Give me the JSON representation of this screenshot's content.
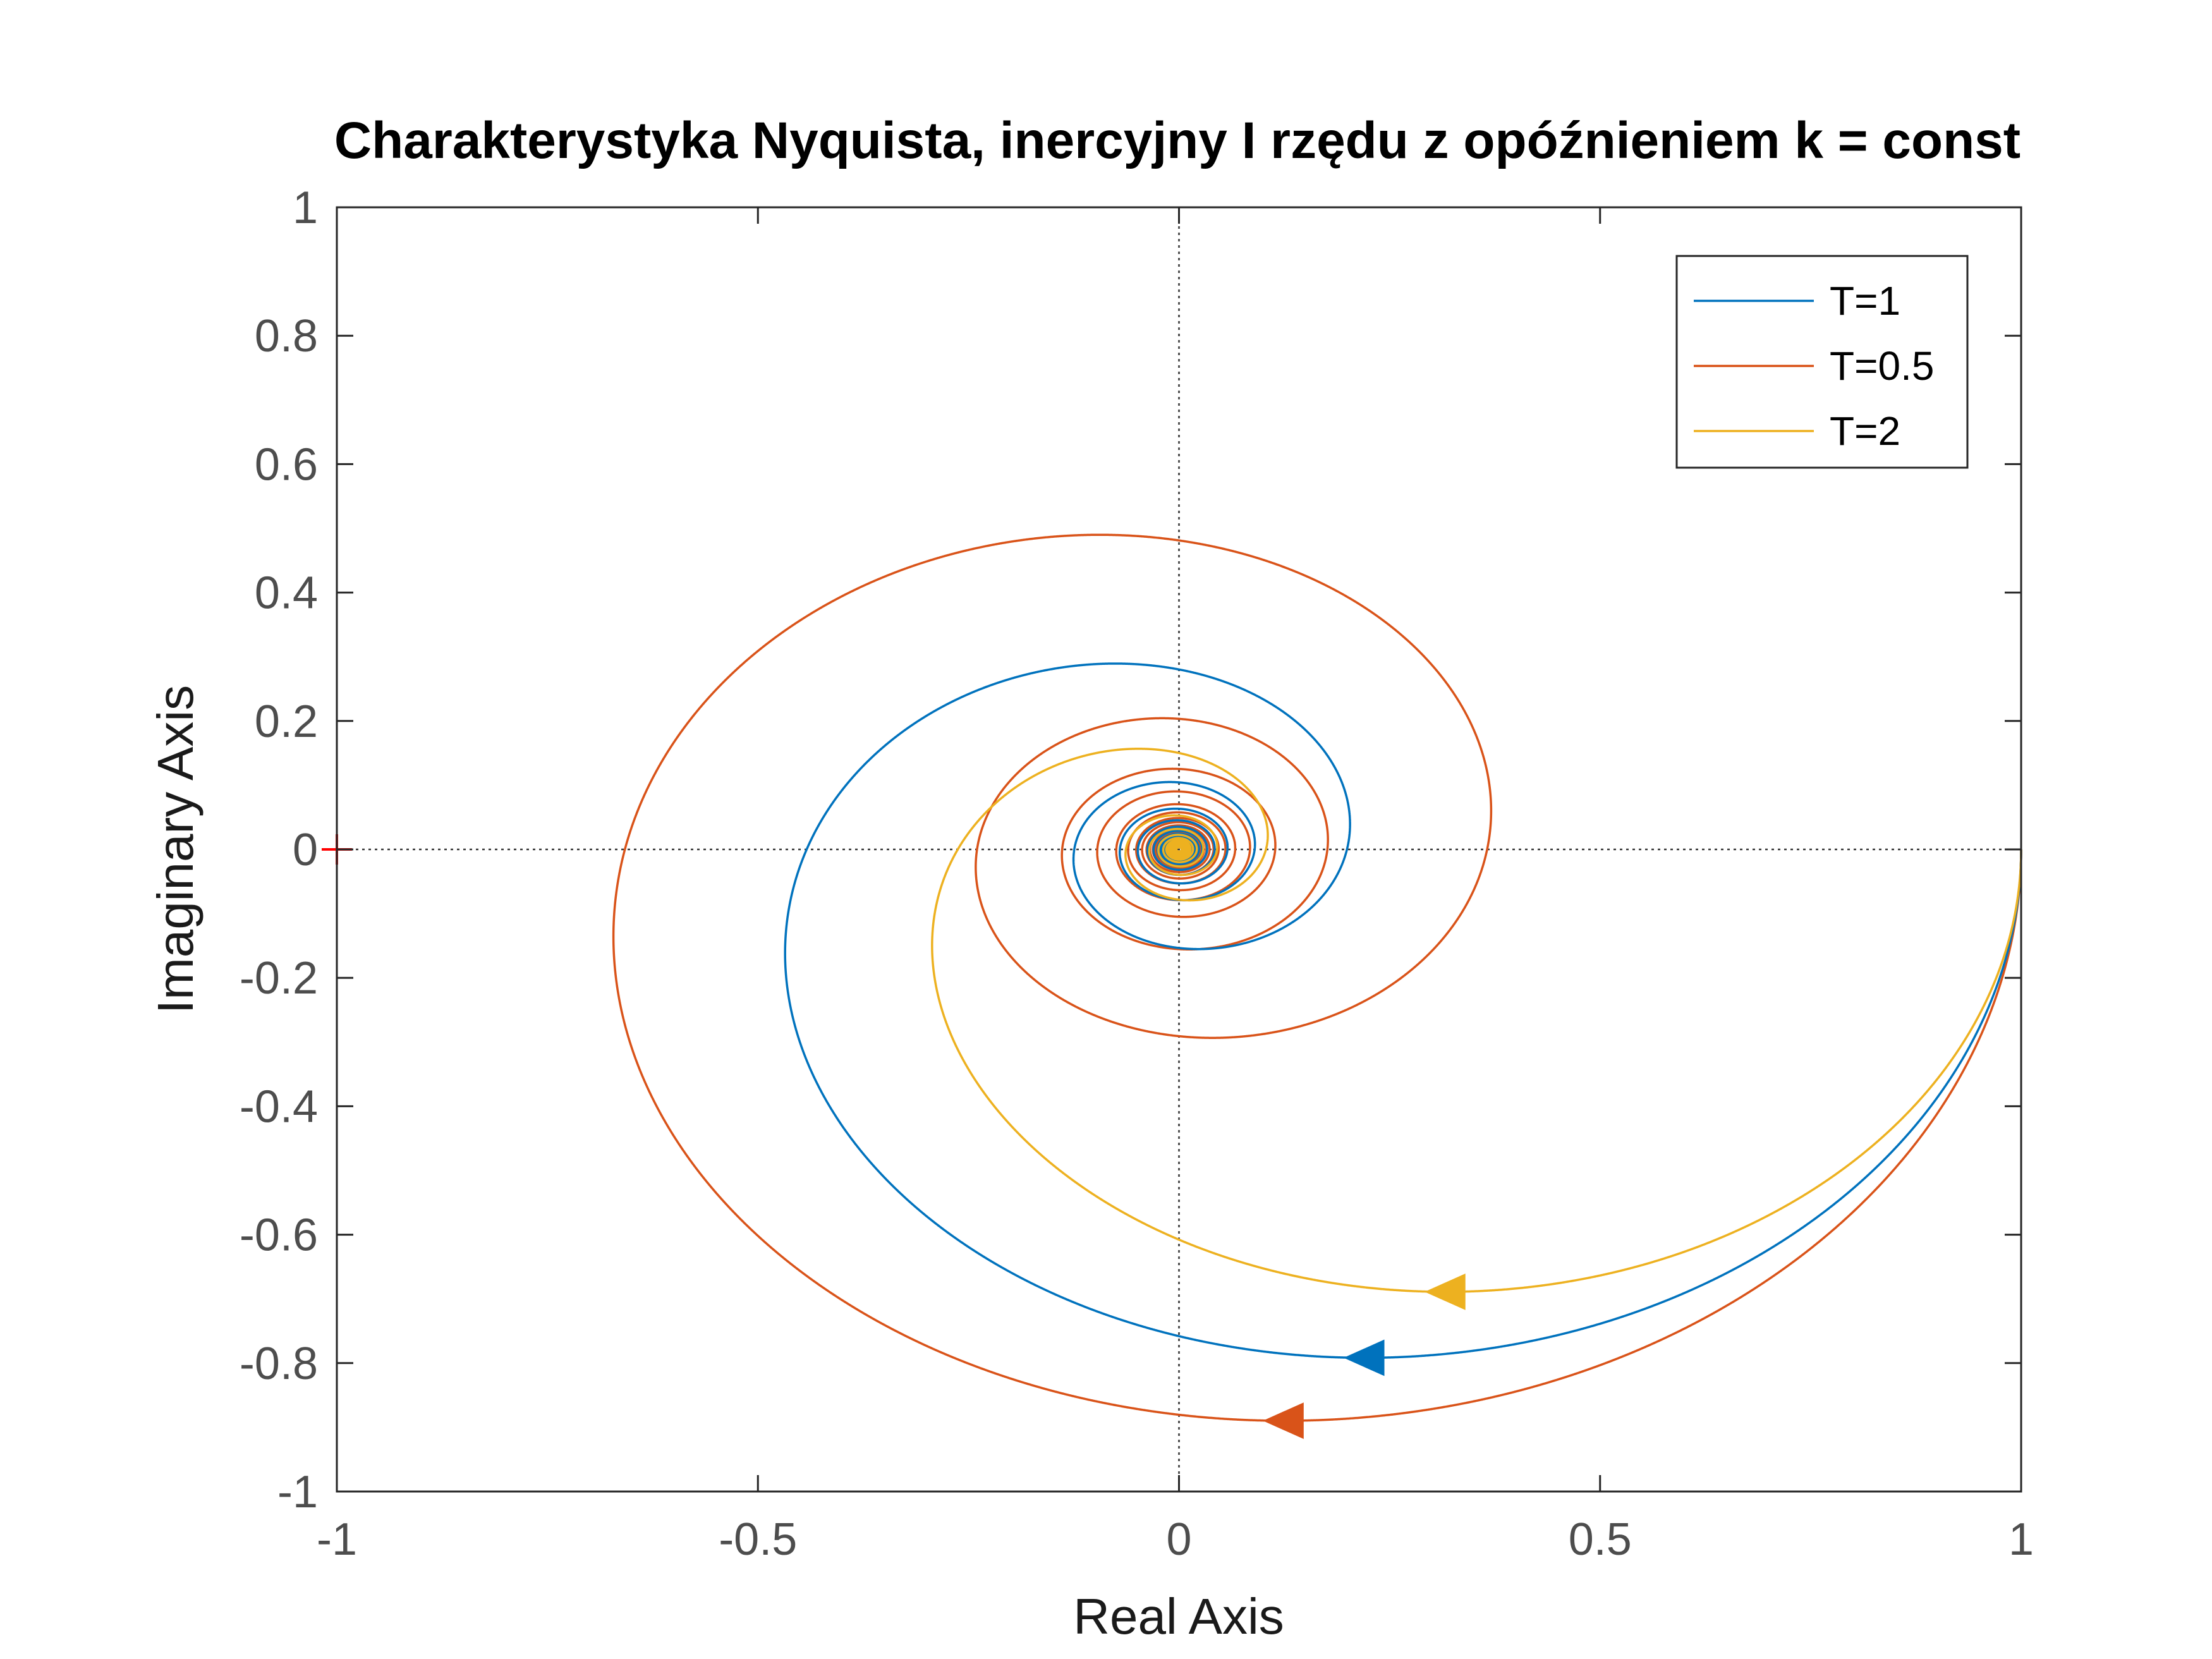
{
  "chart_data": {
    "type": "line",
    "title": "Charakterystyka Nyquista, inercyjny I rzędu z opóźnieniem k = const",
    "xlabel": "Real Axis",
    "ylabel": "Imaginary Axis",
    "xlim": [
      -1,
      1
    ],
    "ylim": [
      -1,
      1
    ],
    "xticks": [
      "-1",
      "-0.5",
      "0",
      "0.5",
      "1"
    ],
    "yticks": [
      "1",
      "0.8",
      "0.6",
      "0.4",
      "0.2",
      "0",
      "-0.2",
      "-0.4",
      "-0.6",
      "-0.8",
      "-1"
    ],
    "grid": false,
    "zero_lines": true,
    "legend_position": "top-right",
    "critical_point": {
      "x": -1,
      "y": 0,
      "color": "#ff0000"
    },
    "series": [
      {
        "name": "T=1",
        "T": 1,
        "color": "#0072bd"
      },
      {
        "name": "T=0.5",
        "T": 0.5,
        "color": "#d95319"
      },
      {
        "name": "T=2",
        "T": 2,
        "color": "#edb120"
      }
    ]
  }
}
